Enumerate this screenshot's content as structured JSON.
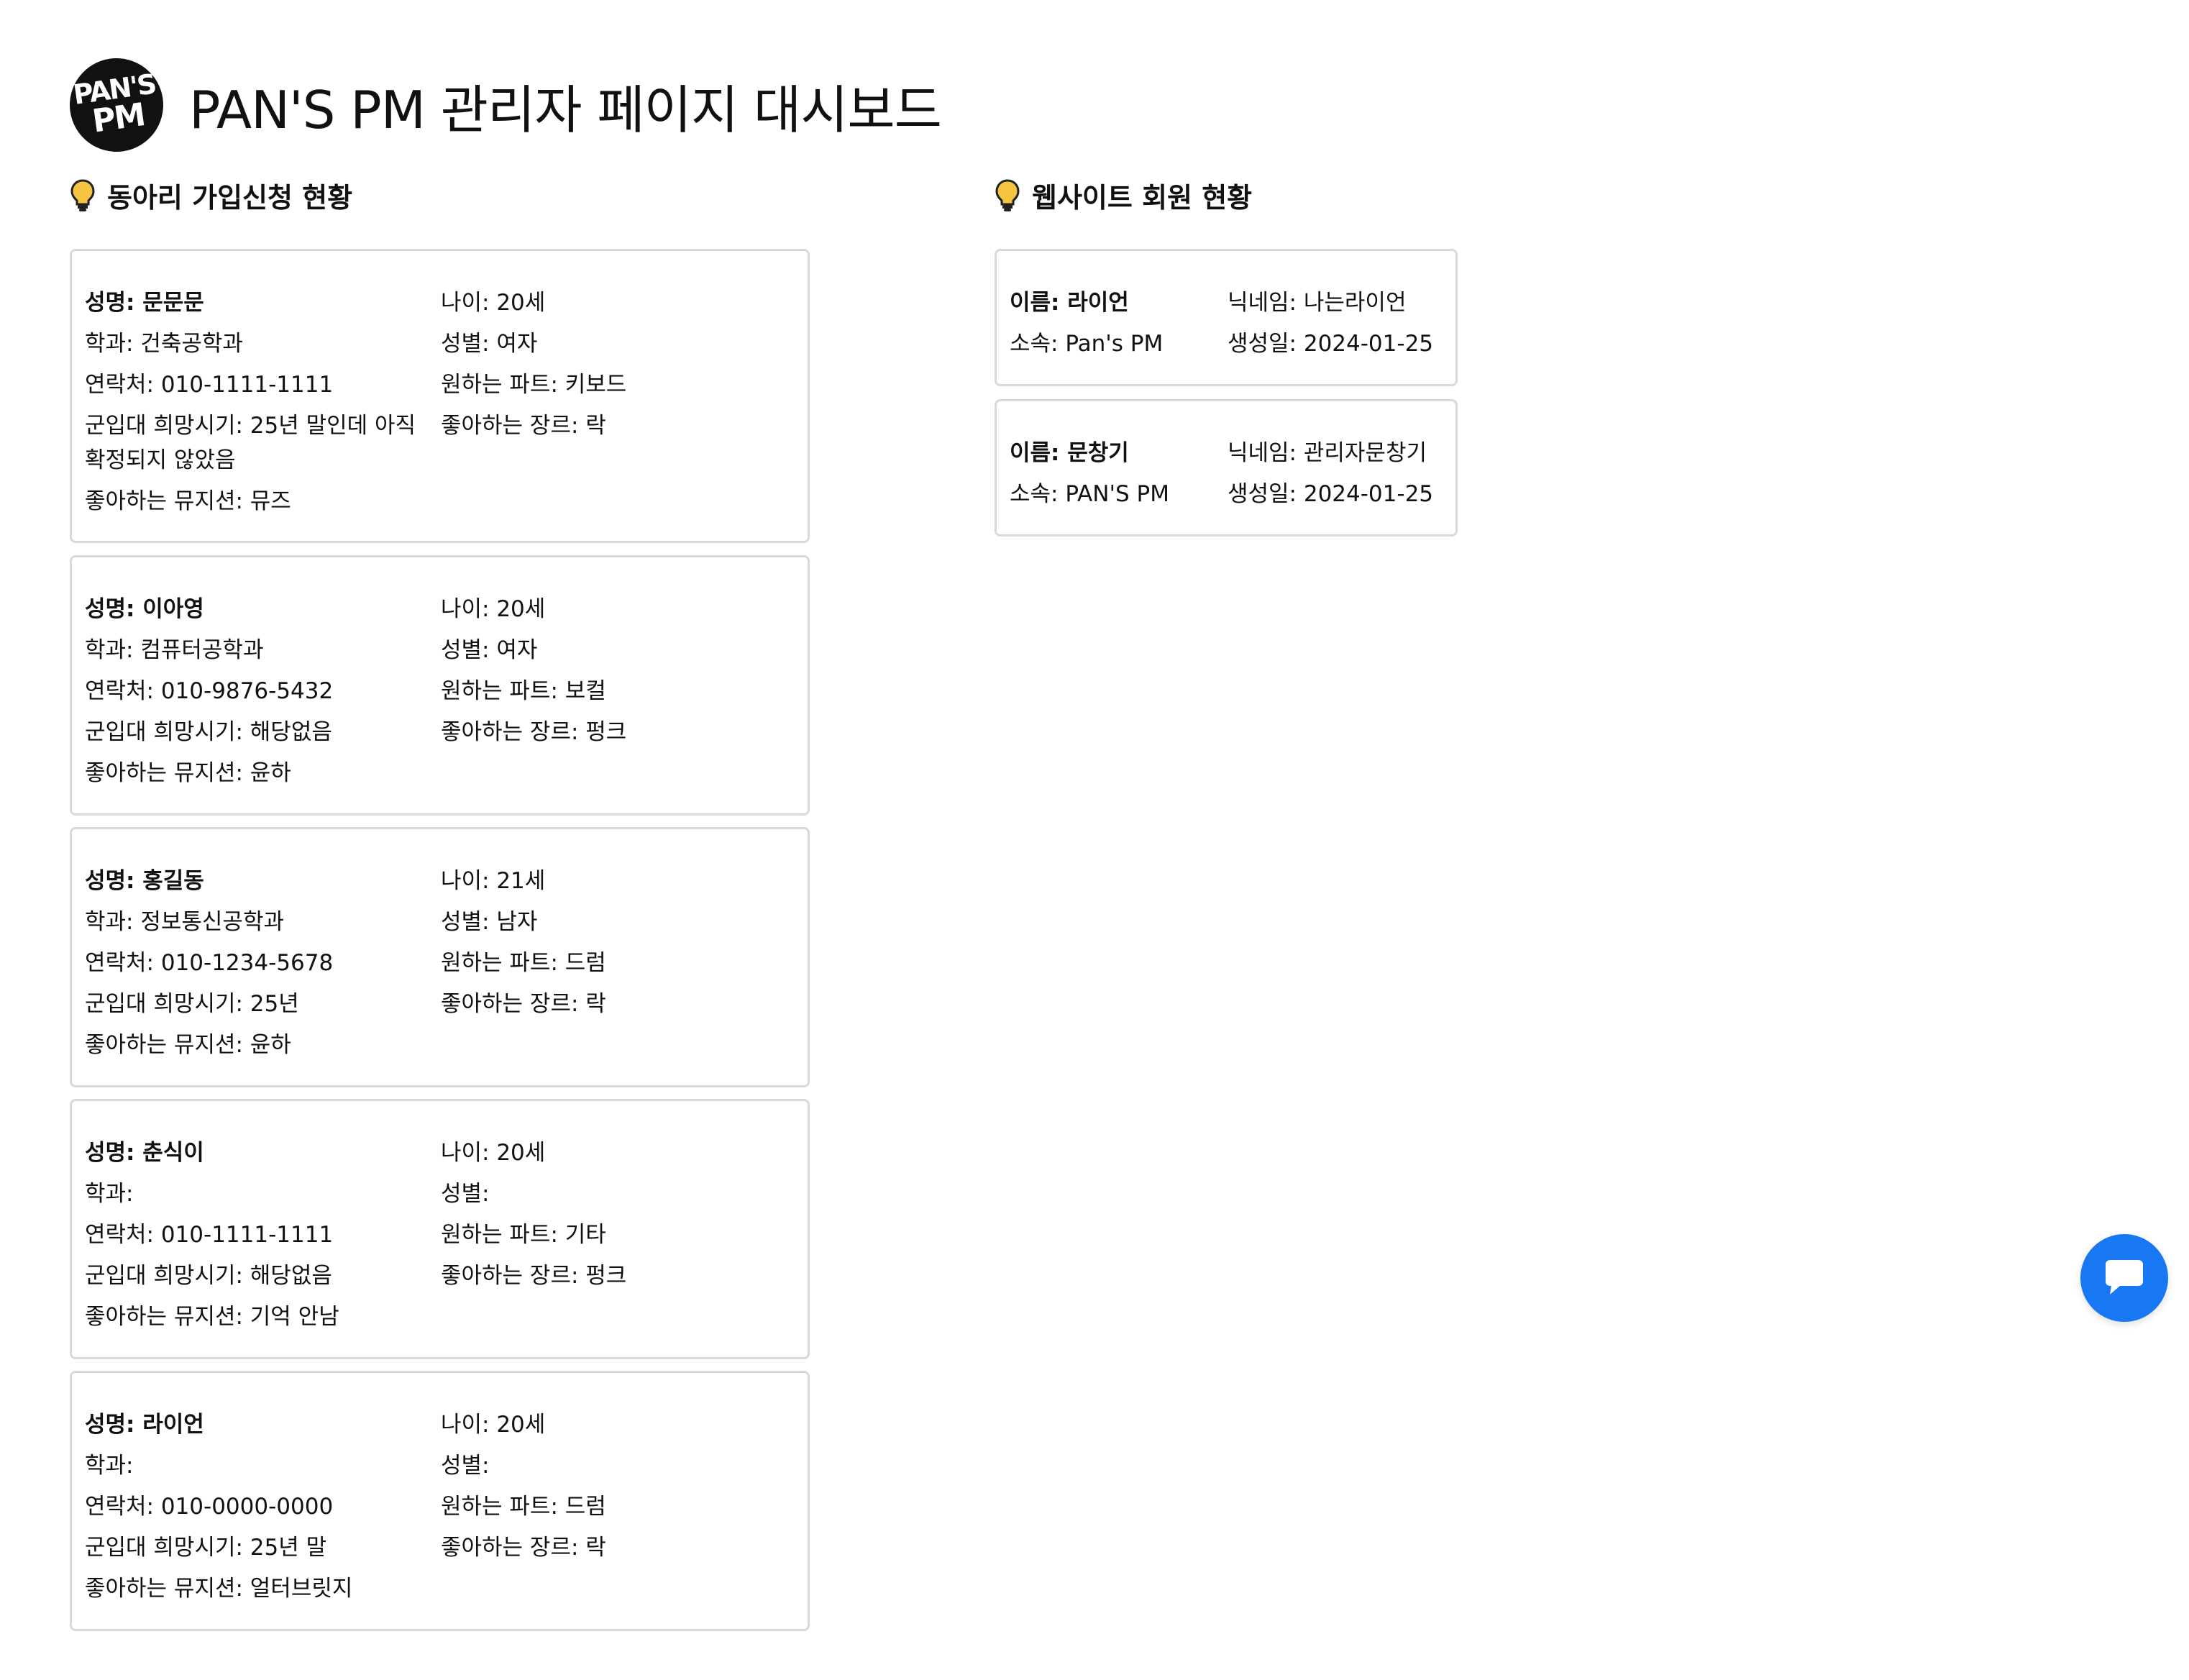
{
  "header": {
    "title": "PAN'S PM 관리자 페이지 대시보드",
    "logo_text": [
      "PAN'S",
      "PM"
    ]
  },
  "sections": {
    "applications_title": "동아리 가입신청 현황",
    "members_title": "웹사이트 회원 현황"
  },
  "applications": [
    {
      "name": "성명: 문문문",
      "age": "나이: 20세",
      "dept": "학과: 건축공학과",
      "gender": "성별: 여자",
      "phone": "연락처: 010-1111-1111",
      "part": "원하는 파트: 키보드",
      "military": "군입대 희망시기: 25년 말인데 아직 확정되지 않았음",
      "genre": "좋아하는 장르: 락",
      "musician": "좋아하는 뮤지션: 뮤즈"
    },
    {
      "name": "성명: 이아영",
      "age": "나이: 20세",
      "dept": "학과: 컴퓨터공학과",
      "gender": "성별: 여자",
      "phone": "연락처: 010-9876-5432",
      "part": "원하는 파트: 보컬",
      "military": "군입대 희망시기: 해당없음",
      "genre": "좋아하는 장르: 펑크",
      "musician": "좋아하는 뮤지션: 윤하"
    },
    {
      "name": "성명: 홍길동",
      "age": "나이: 21세",
      "dept": "학과: 정보통신공학과",
      "gender": "성별: 남자",
      "phone": "연락처: 010-1234-5678",
      "part": "원하는 파트: 드럼",
      "military": "군입대 희망시기: 25년",
      "genre": "좋아하는 장르: 락",
      "musician": "좋아하는 뮤지션: 윤하"
    },
    {
      "name": "성명: 춘식이",
      "age": "나이: 20세",
      "dept": "학과:",
      "gender": "성별:",
      "phone": "연락처: 010-1111-1111",
      "part": "원하는 파트: 기타",
      "military": "군입대 희망시기: 해당없음",
      "genre": "좋아하는 장르: 펑크",
      "musician": "좋아하는 뮤지션: 기억 안남"
    },
    {
      "name": "성명: 라이언",
      "age": "나이: 20세",
      "dept": "학과:",
      "gender": "성별:",
      "phone": "연락처: 010-0000-0000",
      "part": "원하는 파트: 드럼",
      "military": "군입대 희망시기: 25년 말",
      "genre": "좋아하는 장르: 락",
      "musician": "좋아하는 뮤지션: 얼터브릿지"
    }
  ],
  "members": [
    {
      "name": "이름: 라이언",
      "nickname": "닉네임: 나는라이언",
      "affiliation": "소속: Pan's PM",
      "birth": "생성일: 2024-01-25"
    },
    {
      "name": "이름: 문창기",
      "nickname": "닉네임: 관리자문창기",
      "affiliation": "소속: PAN'S PM",
      "birth": "생성일: 2024-01-25"
    }
  ],
  "icons": {
    "section": "lightbulb-icon",
    "chat": "chat-bubble-icon",
    "logo": "pans-pm-logo"
  },
  "colors": {
    "accent": "#1877f2",
    "bulb": "#f5c542",
    "card_border": "#d9d9d9"
  }
}
